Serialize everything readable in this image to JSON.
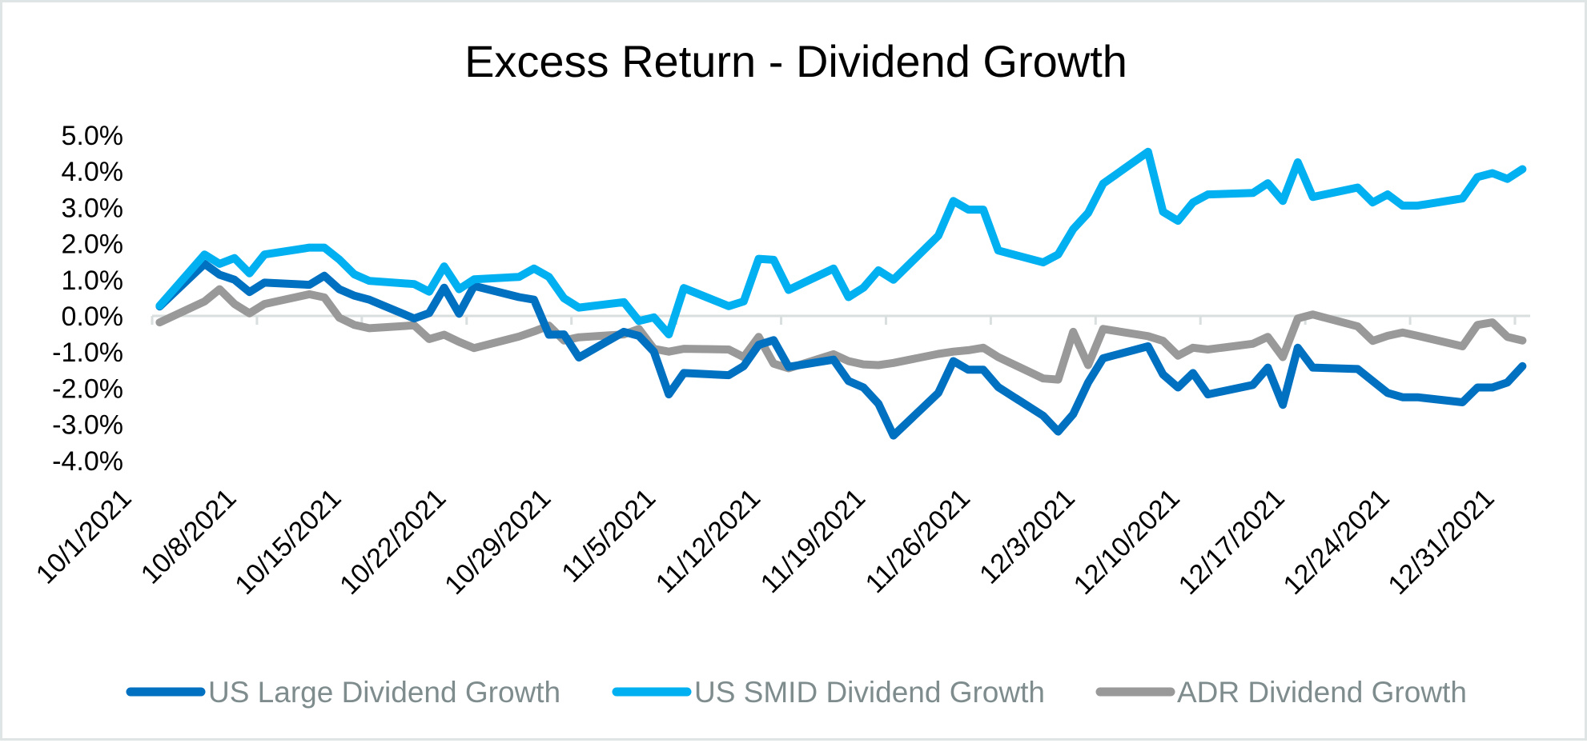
{
  "chart_data": {
    "type": "line",
    "title": "Excess Return - Dividend Growth",
    "xlabel": "",
    "ylabel": "",
    "ylim": [
      -4.0,
      5.0
    ],
    "y_tick_step": 1.0,
    "y_tick_labels": [
      "5.0%",
      "4.0%",
      "3.0%",
      "2.0%",
      "1.0%",
      "0.0%",
      "-1.0%",
      "-2.0%",
      "-3.0%",
      "-4.0%"
    ],
    "y_unit": "%",
    "x_range": [
      "10/1/2021",
      "12/31/2021"
    ],
    "x_tick_labels": [
      "10/1/2021",
      "10/8/2021",
      "10/15/2021",
      "10/22/2021",
      "10/29/2021",
      "11/5/2021",
      "11/12/2021",
      "11/19/2021",
      "11/26/2021",
      "12/3/2021",
      "12/10/2021",
      "12/17/2021",
      "12/24/2021",
      "12/31/2021"
    ],
    "grid": false,
    "legend_position": "bottom",
    "x": [
      "10/1/2021",
      "10/4/2021",
      "10/5/2021",
      "10/6/2021",
      "10/7/2021",
      "10/8/2021",
      "10/11/2021",
      "10/12/2021",
      "10/13/2021",
      "10/14/2021",
      "10/15/2021",
      "10/18/2021",
      "10/19/2021",
      "10/20/2021",
      "10/21/2021",
      "10/22/2021",
      "10/25/2021",
      "10/26/2021",
      "10/27/2021",
      "10/28/2021",
      "10/29/2021",
      "11/1/2021",
      "11/2/2021",
      "11/3/2021",
      "11/4/2021",
      "11/5/2021",
      "11/8/2021",
      "11/9/2021",
      "11/10/2021",
      "11/11/2021",
      "11/12/2021",
      "11/15/2021",
      "11/16/2021",
      "11/17/2021",
      "11/18/2021",
      "11/19/2021",
      "11/22/2021",
      "11/23/2021",
      "11/24/2021",
      "11/25/2021",
      "11/26/2021",
      "11/29/2021",
      "11/30/2021",
      "12/1/2021",
      "12/2/2021",
      "12/3/2021",
      "12/6/2021",
      "12/7/2021",
      "12/8/2021",
      "12/9/2021",
      "12/10/2021",
      "12/13/2021",
      "12/14/2021",
      "12/15/2021",
      "12/16/2021",
      "12/17/2021",
      "12/20/2021",
      "12/21/2021",
      "12/22/2021",
      "12/23/2021",
      "12/24/2021",
      "12/27/2021",
      "12/28/2021",
      "12/29/2021",
      "12/30/2021",
      "12/31/2021"
    ],
    "series": [
      {
        "name": "US Large Dividend Growth",
        "color": "#0070c0",
        "values": [
          0.26,
          1.44,
          1.14,
          1.0,
          0.66,
          0.92,
          0.86,
          1.11,
          0.74,
          0.56,
          0.45,
          -0.07,
          0.08,
          0.78,
          0.06,
          0.83,
          0.52,
          0.45,
          -0.52,
          -0.51,
          -1.15,
          -0.44,
          -0.55,
          -0.99,
          -2.17,
          -1.58,
          -1.64,
          -1.39,
          -0.8,
          -0.67,
          -1.41,
          -1.21,
          -1.8,
          -1.98,
          -2.43,
          -3.31,
          -2.13,
          -1.25,
          -1.49,
          -1.49,
          -1.97,
          -2.76,
          -3.2,
          -2.72,
          -1.84,
          -1.17,
          -0.84,
          -1.62,
          -1.98,
          -1.58,
          -2.17,
          -1.91,
          -1.43,
          -2.46,
          -0.88,
          -1.43,
          -1.47,
          -1.8,
          -2.13,
          -2.25,
          -2.25,
          -2.39,
          -1.98,
          -1.98,
          -1.84,
          -1.39
        ]
      },
      {
        "name": "US SMID Dividend Growth",
        "color": "#00b0f0",
        "values": [
          0.28,
          1.7,
          1.44,
          1.6,
          1.18,
          1.7,
          1.89,
          1.89,
          1.56,
          1.15,
          0.97,
          0.88,
          0.67,
          1.37,
          0.74,
          1.01,
          1.08,
          1.31,
          1.08,
          0.49,
          0.23,
          0.38,
          -0.14,
          -0.04,
          -0.51,
          0.77,
          0.27,
          0.4,
          1.58,
          1.55,
          0.72,
          1.31,
          0.52,
          0.78,
          1.26,
          1.0,
          2.22,
          3.18,
          2.94,
          2.94,
          1.81,
          1.48,
          1.7,
          2.4,
          2.85,
          3.66,
          4.54,
          2.88,
          2.63,
          3.14,
          3.36,
          3.4,
          3.67,
          3.18,
          4.25,
          3.29,
          3.55,
          3.14,
          3.36,
          3.05,
          3.05,
          3.25,
          3.84,
          3.95,
          3.79,
          4.06
        ]
      },
      {
        "name": "ADR Dividend Growth",
        "color": "#999999",
        "values": [
          -0.18,
          0.4,
          0.74,
          0.33,
          0.07,
          0.33,
          0.6,
          0.51,
          -0.05,
          -0.25,
          -0.34,
          -0.26,
          -0.64,
          -0.52,
          -0.72,
          -0.89,
          -0.57,
          -0.43,
          -0.27,
          -0.68,
          -0.59,
          -0.51,
          -0.36,
          -0.91,
          -0.99,
          -0.91,
          -0.93,
          -1.14,
          -0.58,
          -1.32,
          -1.45,
          -1.06,
          -1.25,
          -1.34,
          -1.36,
          -1.3,
          -1.05,
          -0.99,
          -0.95,
          -0.88,
          -1.14,
          -1.73,
          -1.76,
          -0.44,
          -1.36,
          -0.36,
          -0.56,
          -0.69,
          -1.1,
          -0.88,
          -0.93,
          -0.77,
          -0.58,
          -1.14,
          -0.07,
          0.04,
          -0.29,
          -0.69,
          -0.55,
          -0.46,
          -0.55,
          -0.84,
          -0.25,
          -0.18,
          -0.58,
          -0.68
        ]
      }
    ]
  },
  "colors": {
    "axis": "#d9dede",
    "border": "#dfe5e5",
    "legend_text": "#7f8c8d"
  }
}
